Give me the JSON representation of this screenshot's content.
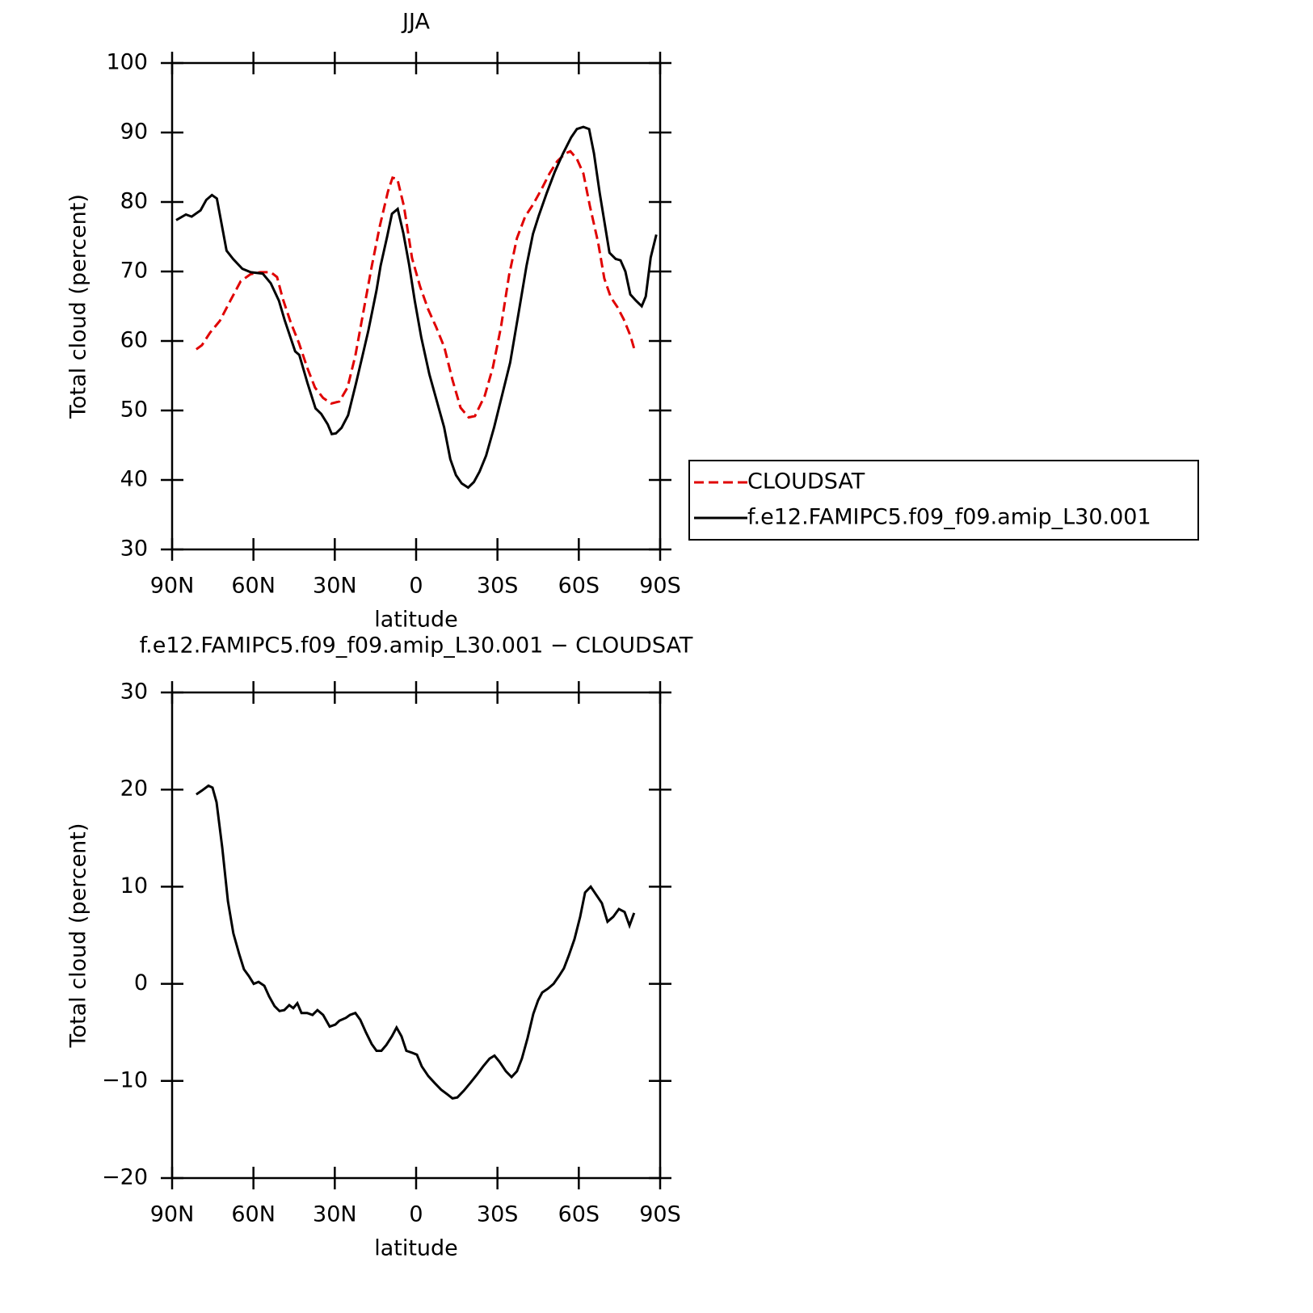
{
  "chart_data": [
    {
      "type": "line",
      "title": "JJA",
      "xlabel": "latitude",
      "ylabel": "Total cloud (percent)",
      "xlim": [
        90,
        -90
      ],
      "xticks": [
        {
          "value": 90,
          "label": "90N"
        },
        {
          "value": 60,
          "label": "60N"
        },
        {
          "value": 30,
          "label": "30N"
        },
        0,
        {
          "value": -30,
          "label": "30S"
        },
        {
          "value": -60,
          "label": "60S"
        },
        {
          "value": -90,
          "label": "90S"
        }
      ],
      "ylim": [
        30,
        100
      ],
      "yticks": [
        30,
        40,
        50,
        60,
        70,
        80,
        90,
        100
      ],
      "legend": "right",
      "series": [
        {
          "name": "CLOUDSAT",
          "color": "#e00000",
          "dash": "dashed",
          "x": [
            81.1,
            79.0,
            76.0,
            72.4,
            68.5,
            64.7,
            61.1,
            57.5,
            53.6,
            51.3,
            49.2,
            46.2,
            43.2,
            40.2,
            37.3,
            34.3,
            31.3,
            28.3,
            25.3,
            22.4,
            19.4,
            16.4,
            13.4,
            10.4,
            8.7,
            6.9,
            4.5,
            1.5,
            -1.5,
            -4.5,
            -7.4,
            -10.4,
            -13.4,
            -16.4,
            -19.4,
            -21.7,
            -25.3,
            -28.3,
            -31.3,
            -34.3,
            -37.2,
            -40.2,
            -43.2,
            -46.2,
            -49.2,
            -52.1,
            -55.1,
            -56.9,
            -59.3,
            -61.7,
            -64.1,
            -67.1,
            -69.4,
            -71.8,
            -74.2,
            -76.6,
            -79.0,
            -80.8
          ],
          "values": [
            58.8,
            59.4,
            61.2,
            62.9,
            65.8,
            68.6,
            69.6,
            69.9,
            69.9,
            69.2,
            66.1,
            62.6,
            59.7,
            56.2,
            53.3,
            51.8,
            51.0,
            51.3,
            53.3,
            57.9,
            64.3,
            70.7,
            76.5,
            81.5,
            83.5,
            83.3,
            79.4,
            71.9,
            67.8,
            64.5,
            62.0,
            59.1,
            54.4,
            50.4,
            49.0,
            49.2,
            52.1,
            56.2,
            62.0,
            69.5,
            74.8,
            77.9,
            79.7,
            81.8,
            84.1,
            85.9,
            87.0,
            87.3,
            86.2,
            84.1,
            79.4,
            74.2,
            69.0,
            66.3,
            64.9,
            63.1,
            60.8,
            58.4
          ]
        },
        {
          "name": "f.e12.FAMIPC5.f09_f09.amip_L30.001",
          "color": "#000000",
          "dash": "solid",
          "x": [
            88.5,
            84.9,
            82.8,
            79.5,
            77.4,
            75.3,
            73.5,
            69.9,
            67.5,
            64.1,
            61.0,
            56.6,
            53.6,
            50.6,
            48.5,
            44.6,
            43.1,
            40.1,
            37.1,
            35.0,
            32.6,
            31.1,
            29.6,
            27.5,
            25.1,
            22.1,
            19.7,
            17.6,
            14.6,
            13.1,
            10.7,
            8.9,
            6.8,
            4.7,
            2.6,
            0.5,
            -1.9,
            -4.9,
            -10.3,
            -12.6,
            -14.7,
            -16.8,
            -19.2,
            -21.3,
            -23.4,
            -25.8,
            -28.8,
            -31.7,
            -34.7,
            -37.7,
            -40.7,
            -43.1,
            -45.2,
            -48.2,
            -51.2,
            -54.2,
            -57.2,
            -59.3,
            -61.7,
            -63.8,
            -65.6,
            -67.7,
            -71.3,
            -73.6,
            -75.4,
            -77.2,
            -79.0,
            -81.1,
            -83.2,
            -84.7,
            -86.5,
            -88.6
          ],
          "values": [
            77.4,
            78.2,
            77.9,
            78.8,
            80.3,
            81.0,
            80.5,
            73.0,
            71.8,
            70.4,
            69.9,
            69.7,
            68.3,
            65.8,
            63.0,
            58.5,
            58.0,
            54.0,
            50.3,
            49.5,
            48.0,
            46.6,
            46.7,
            47.5,
            49.3,
            54.0,
            58.0,
            61.5,
            67.3,
            70.8,
            75.0,
            78.3,
            79.0,
            75.5,
            71.0,
            65.8,
            60.5,
            55.2,
            47.6,
            43.0,
            40.7,
            39.5,
            38.9,
            39.7,
            41.2,
            43.5,
            47.6,
            52.2,
            56.9,
            63.8,
            70.8,
            75.4,
            78.0,
            81.3,
            84.4,
            87.0,
            89.3,
            90.5,
            90.8,
            90.5,
            87.0,
            81.3,
            72.7,
            71.8,
            71.6,
            70.0,
            66.7,
            65.8,
            65.0,
            66.4,
            72.0,
            75.3
          ]
        }
      ]
    },
    {
      "type": "line",
      "title": "f.e12.FAMIPC5.f09_f09.amip_L30.001 − CLOUDSAT",
      "xlabel": "latitude",
      "ylabel": "Total cloud (percent)",
      "xlim": [
        90,
        -90
      ],
      "xticks": [
        {
          "value": 90,
          "label": "90N"
        },
        {
          "value": 60,
          "label": "60N"
        },
        {
          "value": 30,
          "label": "30N"
        },
        0,
        {
          "value": -30,
          "label": "30S"
        },
        {
          "value": -60,
          "label": "60S"
        },
        {
          "value": -90,
          "label": "90S"
        }
      ],
      "ylim": [
        -20,
        30
      ],
      "yticks": [
        {
          "value": -20,
          "label": "−20"
        },
        {
          "value": -10,
          "label": "−10"
        },
        0,
        10,
        20,
        30
      ],
      "series": [
        {
          "color": "#000000",
          "dash": "solid",
          "x": [
            81.1,
            79.0,
            76.6,
            75.1,
            73.6,
            71.5,
            69.4,
            67.4,
            65.3,
            63.5,
            61.7,
            59.9,
            58.1,
            56.0,
            54.2,
            52.2,
            50.4,
            48.6,
            46.8,
            45.3,
            43.8,
            42.3,
            40.2,
            38.2,
            36.4,
            34.3,
            31.9,
            29.8,
            28.3,
            25.9,
            24.4,
            22.4,
            20.6,
            18.5,
            16.4,
            14.6,
            12.8,
            11.0,
            8.9,
            7.2,
            5.4,
            3.6,
            1.5,
            -0.3,
            -2.1,
            -4.5,
            -6.8,
            -9.2,
            -11.6,
            -13.4,
            -15.2,
            -17.6,
            -20.0,
            -22.3,
            -24.7,
            -27.1,
            -28.9,
            -30.7,
            -33.1,
            -35.2,
            -37.2,
            -39.0,
            -41.1,
            -43.2,
            -45.0,
            -46.5,
            -48.6,
            -50.7,
            -52.7,
            -54.5,
            -56.3,
            -58.4,
            -60.5,
            -62.3,
            -64.4,
            -66.1,
            -68.5,
            -70.6,
            -72.7,
            -74.8,
            -76.9,
            -78.7,
            -80.4
          ],
          "values": [
            19.5,
            19.9,
            20.4,
            20.2,
            18.7,
            14.0,
            8.5,
            5.2,
            3.1,
            1.5,
            0.8,
            0,
            0.2,
            -0.2,
            -1.3,
            -2.3,
            -2.8,
            -2.7,
            -2.2,
            -2.5,
            -2.0,
            -3.0,
            -3.0,
            -3.2,
            -2.7,
            -3.2,
            -4.4,
            -4.2,
            -3.8,
            -3.5,
            -3.2,
            -3.0,
            -3.7,
            -5.0,
            -6.2,
            -6.9,
            -6.9,
            -6.3,
            -5.4,
            -4.5,
            -5.4,
            -6.9,
            -7.1,
            -7.3,
            -8.5,
            -9.5,
            -10.2,
            -10.9,
            -11.4,
            -11.8,
            -11.7,
            -11.0,
            -10.2,
            -9.4,
            -8.5,
            -7.7,
            -7.4,
            -8.0,
            -9.0,
            -9.6,
            -9.0,
            -7.7,
            -5.6,
            -3.1,
            -1.7,
            -0.9,
            -0.5,
            0,
            0.8,
            1.6,
            2.9,
            4.6,
            6.9,
            9.4,
            10.0,
            9.3,
            8.3,
            6.4,
            6.9,
            7.7,
            7.4,
            6.0,
            7.3
          ]
        }
      ]
    }
  ]
}
